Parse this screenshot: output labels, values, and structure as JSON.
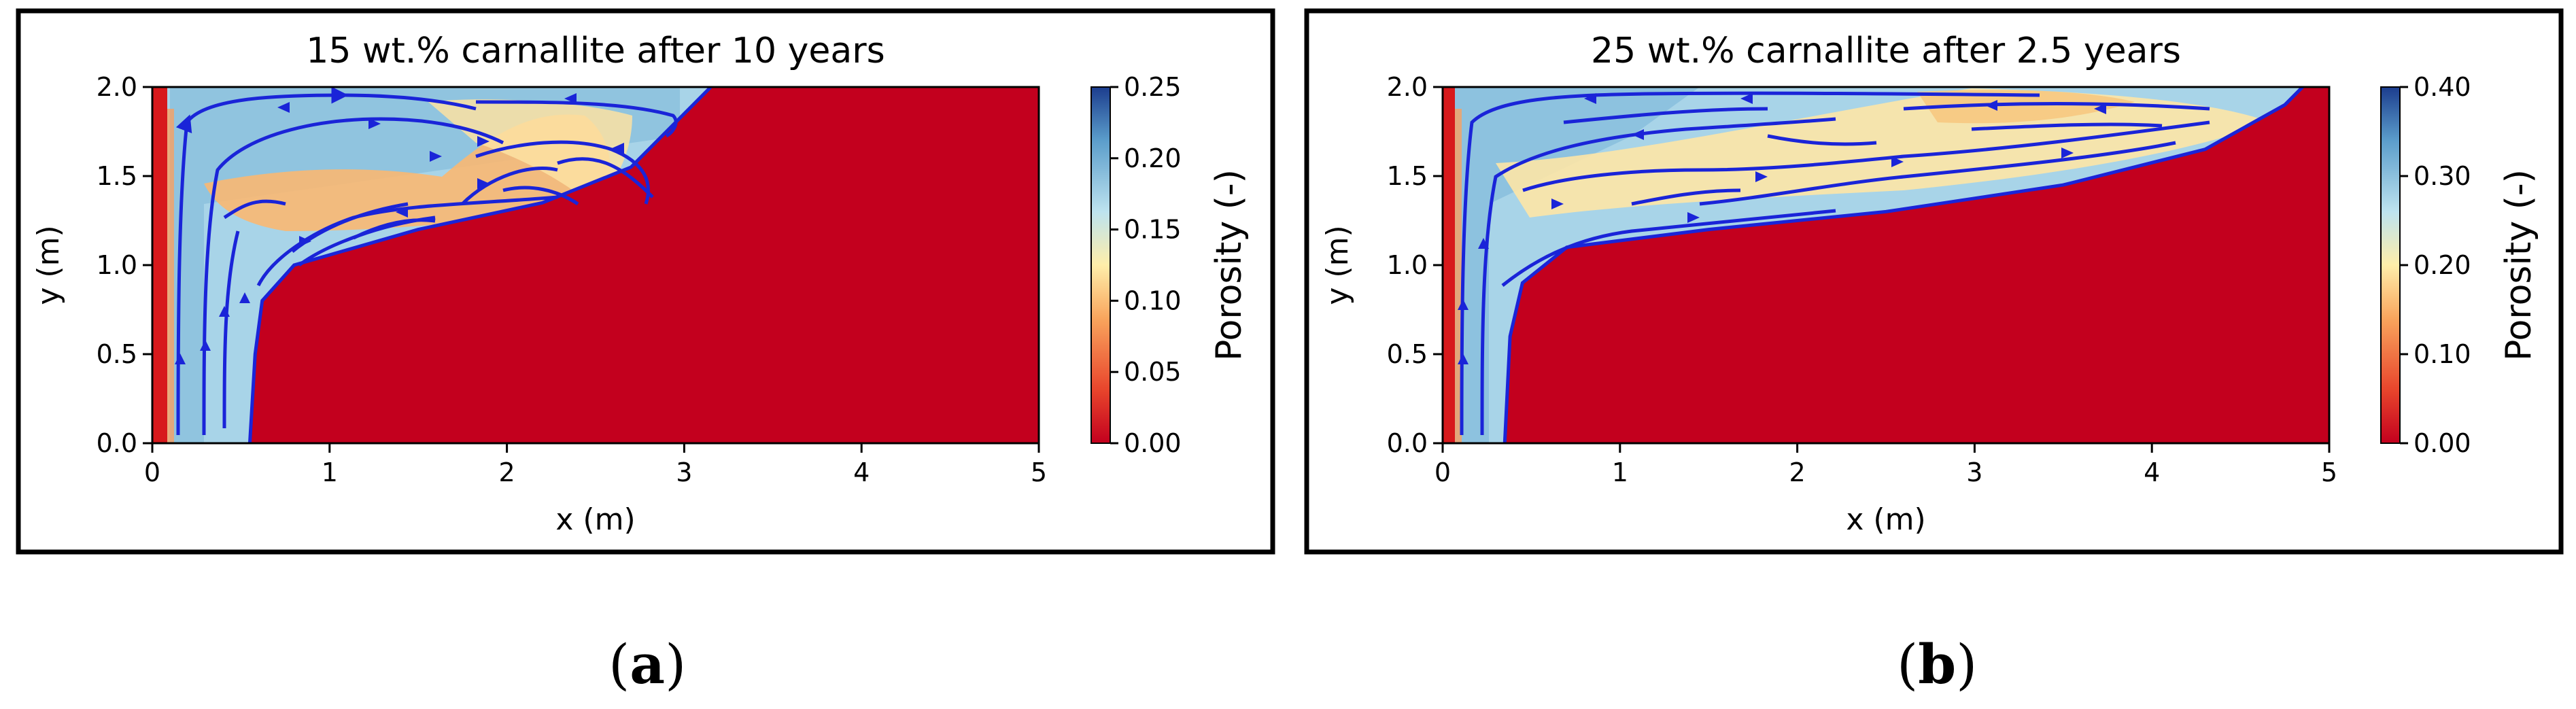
{
  "charts": [
    {
      "id": "a",
      "title": "15 wt.% carnallite after 10 years",
      "xlabel": "x (m)",
      "ylabel": "y (m)",
      "colorbar_label": "Porosity (-)",
      "subfigure_label": "a",
      "xticks": [
        "0",
        "1",
        "2",
        "3",
        "4",
        "5"
      ],
      "yticks": [
        "0.0",
        "0.5",
        "1.0",
        "1.5",
        "2.0"
      ],
      "cticks": [
        "0.00",
        "0.05",
        "0.10",
        "0.15",
        "0.20",
        "0.25"
      ]
    },
    {
      "id": "b",
      "title": "25 wt.% carnallite after 2.5 years",
      "xlabel": "x (m)",
      "ylabel": "y (m)",
      "colorbar_label": "Porosity (-)",
      "subfigure_label": "b",
      "xticks": [
        "0",
        "1",
        "2",
        "3",
        "4",
        "5"
      ],
      "yticks": [
        "0.0",
        "0.5",
        "1.0",
        "1.5",
        "2.0"
      ],
      "cticks": [
        "0.00",
        "0.10",
        "0.20",
        "0.30",
        "0.40"
      ]
    }
  ],
  "chart_data": [
    {
      "type": "heatmap",
      "title": "15 wt.% carnallite after 10 years",
      "xlabel": "x (m)",
      "ylabel": "y (m)",
      "xlim": [
        0,
        5
      ],
      "ylim": [
        0,
        2
      ],
      "colorbar": {
        "label": "Porosity (-)",
        "range": [
          0,
          0.25
        ],
        "ticks": [
          0,
          0.05,
          0.1,
          0.15,
          0.2,
          0.25
        ],
        "colormap": "RdYlBu"
      },
      "dissolution_front": [
        [
          0.55,
          0
        ],
        [
          0.58,
          0.5
        ],
        [
          0.62,
          0.8
        ],
        [
          0.8,
          1.0
        ],
        [
          1.5,
          1.2
        ],
        [
          2.2,
          1.35
        ],
        [
          2.7,
          1.55
        ],
        [
          2.95,
          1.8
        ],
        [
          3.15,
          2.0
        ]
      ],
      "zones": [
        {
          "name": "undissolved salt",
          "porosity": 0.0,
          "region": "right of dissolution front"
        },
        {
          "name": "orange band",
          "porosity": 0.1,
          "x_range": [
            0.5,
            2.5
          ],
          "y_range": [
            1.35,
            1.8
          ]
        },
        {
          "name": "inlet column",
          "porosity": 0.0,
          "x_range": [
            0.0,
            0.12
          ],
          "y_range": [
            0.0,
            2.0
          ]
        },
        {
          "name": "leached channel",
          "porosity": 0.18
        }
      ],
      "streamlines": "recirculation flow from inlet column (upward) across top and back along dissolution front"
    },
    {
      "type": "heatmap",
      "title": "25 wt.% carnallite after 2.5 years",
      "xlabel": "x (m)",
      "ylabel": "y (m)",
      "xlim": [
        0,
        5
      ],
      "ylim": [
        0,
        2
      ],
      "colorbar": {
        "label": "Porosity (-)",
        "range": [
          0,
          0.4
        ],
        "ticks": [
          0,
          0.1,
          0.2,
          0.3,
          0.4
        ],
        "colormap": "RdYlBu"
      },
      "dissolution_front": [
        [
          0.35,
          0
        ],
        [
          0.38,
          0.6
        ],
        [
          0.45,
          0.9
        ],
        [
          0.7,
          1.1
        ],
        [
          1.5,
          1.2
        ],
        [
          2.5,
          1.3
        ],
        [
          3.5,
          1.45
        ],
        [
          4.3,
          1.65
        ],
        [
          4.75,
          1.9
        ],
        [
          4.85,
          2.0
        ]
      ],
      "zones": [
        {
          "name": "undissolved salt",
          "porosity": 0.0,
          "region": "right of dissolution front"
        },
        {
          "name": "yellow band",
          "porosity": 0.2,
          "x_range": [
            0.8,
            4.5
          ],
          "y_range": [
            1.4,
            1.95
          ]
        },
        {
          "name": "inlet column",
          "porosity": 0.0,
          "x_range": [
            0.0,
            0.1
          ],
          "y_range": [
            0.0,
            2.0
          ]
        },
        {
          "name": "leached channel",
          "porosity": 0.3
        }
      ],
      "streamlines": "recirculation flow from inlet column (upward) across top and back along dissolution front"
    }
  ]
}
